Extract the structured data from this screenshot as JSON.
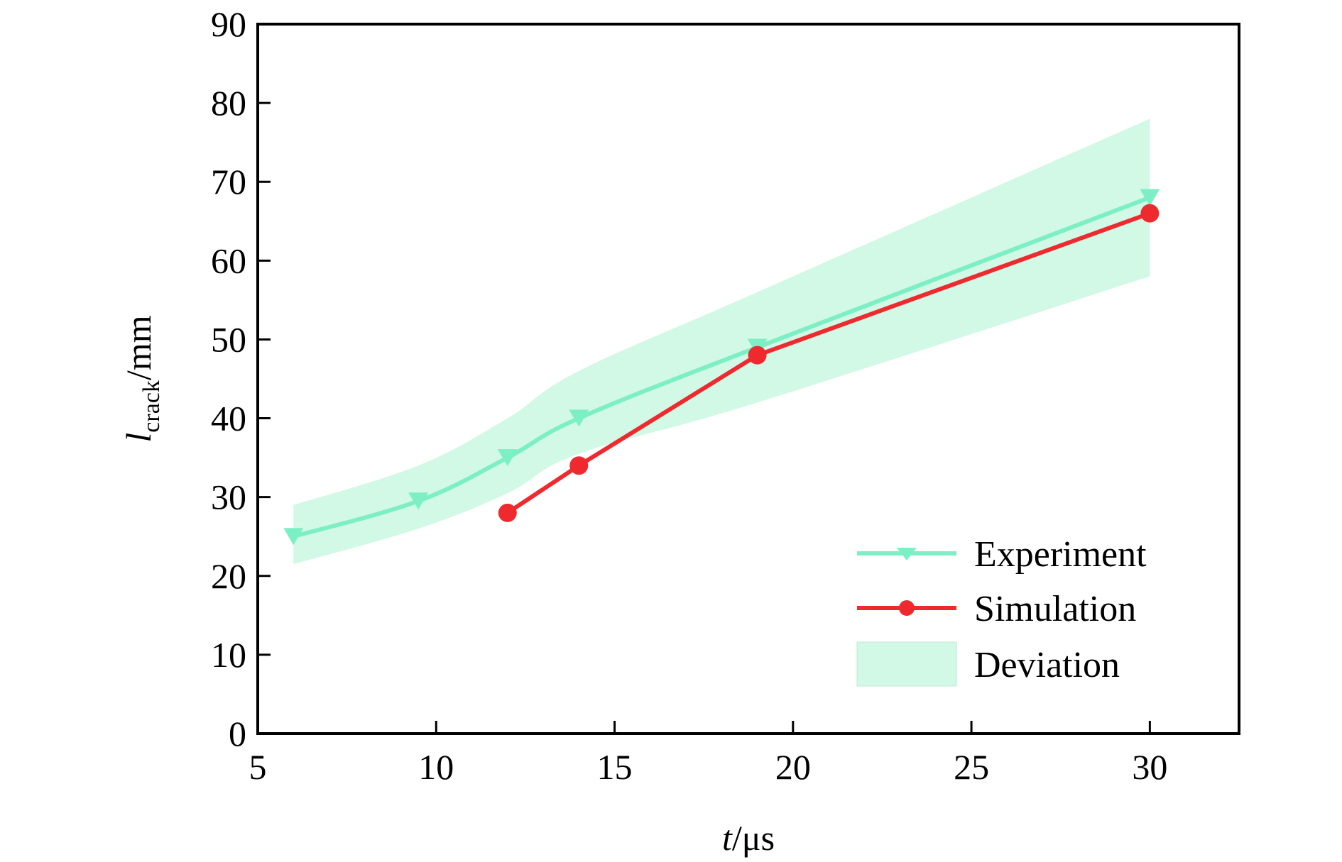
{
  "chart_data": {
    "type": "line",
    "x_axis": {
      "label_var": "t",
      "label_unit": "/μs",
      "range": [
        5,
        32.5
      ],
      "ticks": [
        5,
        10,
        15,
        20,
        25,
        30
      ],
      "tick_labels": [
        "5",
        "10",
        "15",
        "20",
        "25",
        "30"
      ]
    },
    "y_axis": {
      "label_var": "l",
      "label_sub": "crack",
      "label_unit": "/mm",
      "range": [
        0,
        90
      ],
      "ticks": [
        0,
        10,
        20,
        30,
        40,
        50,
        60,
        70,
        80,
        90
      ],
      "tick_labels": [
        "0",
        "10",
        "20",
        "30",
        "40",
        "50",
        "60",
        "70",
        "80",
        "90"
      ]
    },
    "grid": false,
    "legend_position": "bottom-right",
    "series": [
      {
        "name": "Experiment",
        "color": "#7cf0c4",
        "marker": "down-triangle",
        "smooth": true,
        "x": [
          6,
          9.5,
          12,
          14,
          19,
          30
        ],
        "y": [
          25,
          29.5,
          35,
          40,
          49,
          68
        ]
      },
      {
        "name": "Simulation",
        "color": "#ee2a2f",
        "marker": "circle",
        "smooth": false,
        "x": [
          12,
          14,
          19,
          30
        ],
        "y": [
          28,
          34,
          48,
          66
        ]
      }
    ],
    "band": {
      "name": "Deviation",
      "color": "#d2f8e6",
      "x": [
        6,
        9.5,
        12,
        14,
        19,
        30
      ],
      "upper": [
        29,
        34,
        40,
        46,
        56,
        78
      ],
      "lower": [
        21.5,
        26,
        30.5,
        35.5,
        42,
        58
      ]
    }
  }
}
